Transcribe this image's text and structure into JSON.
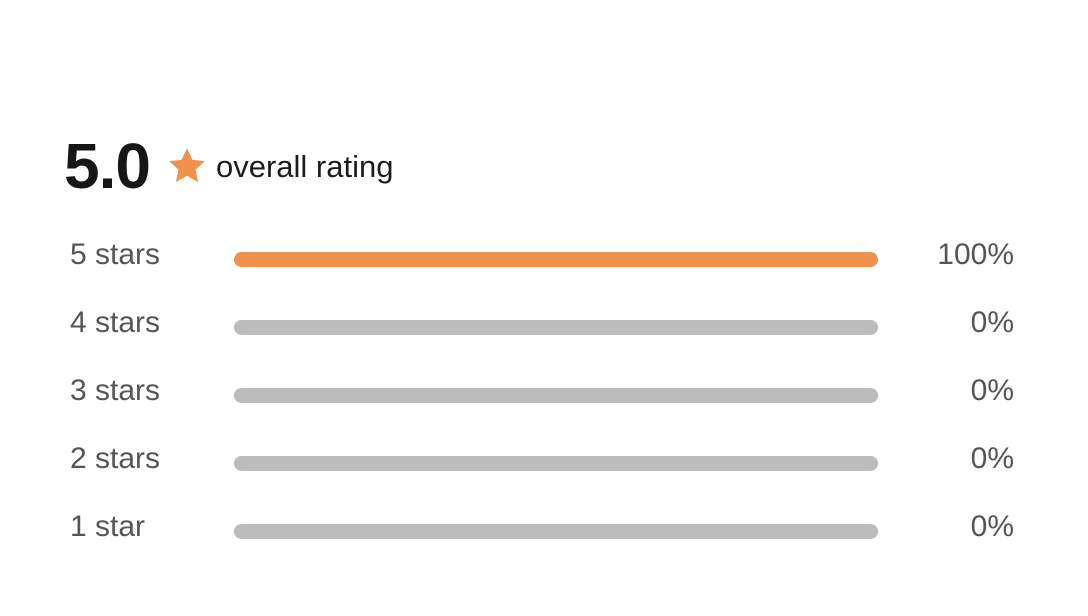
{
  "summary": {
    "score": "5.0",
    "label": "overall rating",
    "icon": "star-icon",
    "icon_color": "#F0924B"
  },
  "distribution": [
    {
      "label": "5 stars",
      "percent_text": "100%",
      "fraction": 1.0
    },
    {
      "label": "4 stars",
      "percent_text": "0%",
      "fraction": 0.0
    },
    {
      "label": "3 stars",
      "percent_text": "0%",
      "fraction": 0.0
    },
    {
      "label": "2 stars",
      "percent_text": "0%",
      "fraction": 0.0
    },
    {
      "label": "1 star",
      "percent_text": "0%",
      "fraction": 0.0
    }
  ],
  "colors": {
    "fill": "#F0924B",
    "track": "#BCBCBC"
  }
}
